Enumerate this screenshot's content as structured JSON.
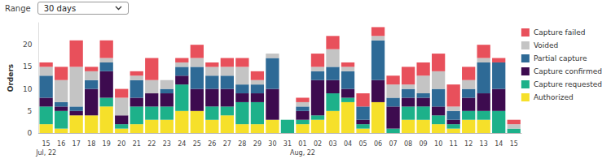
{
  "range_selector": {
    "label": "Range",
    "value": "30 days"
  },
  "chart_data": {
    "type": "bar",
    "stacked": true,
    "grid": false,
    "legend": "right",
    "y_label": "Orders",
    "ylim": [
      0,
      25
    ],
    "yticks": [
      0,
      5,
      10,
      15,
      20
    ],
    "categories": [
      "15\nJul, 22",
      "16",
      "17",
      "18",
      "19",
      "20",
      "21",
      "22",
      "23",
      "24",
      "25",
      "26",
      "27",
      "28",
      "29",
      "30",
      "31",
      "01\nAug, 22",
      "02",
      "03",
      "04",
      "05",
      "06",
      "07",
      "08",
      "09",
      "10",
      "11",
      "12",
      "13",
      "14",
      "15"
    ],
    "series": [
      {
        "name": "Authorized",
        "color": "#f6e02a",
        "values": [
          2,
          1,
          4,
          4,
          6,
          1,
          2,
          3,
          3,
          5,
          5,
          3,
          4,
          2,
          2,
          3,
          0,
          2,
          3,
          5,
          7,
          1,
          7,
          0,
          3,
          3,
          2,
          1,
          3,
          3,
          0,
          0
        ]
      },
      {
        "name": "Capture requested",
        "color": "#1db18a",
        "values": [
          4,
          4,
          0,
          0,
          2,
          1,
          4,
          3,
          3,
          6,
          0,
          3,
          2,
          5,
          5,
          0,
          3,
          1,
          1,
          4,
          1,
          1,
          0,
          1,
          3,
          3,
          2,
          1,
          2,
          2,
          5,
          1
        ]
      },
      {
        "name": "Capture confirmed",
        "color": "#3d0b4f",
        "values": [
          2,
          1,
          1,
          6,
          6,
          2,
          2,
          3,
          3,
          2,
          5,
          4,
          4,
          2,
          2,
          7,
          0,
          2,
          8,
          3,
          2,
          1,
          5,
          5,
          2,
          2,
          2,
          1,
          3,
          4,
          5,
          0
        ]
      },
      {
        "name": "Partial capture",
        "color": "#2e6a96",
        "values": [
          5,
          1,
          1,
          2,
          2,
          0,
          4,
          0,
          1,
          2,
          5,
          3,
          3,
          2,
          2,
          7,
          0,
          1,
          2,
          3,
          4,
          3,
          9,
          2,
          2,
          1,
          4,
          2,
          2,
          7,
          6,
          0
        ]
      },
      {
        "name": "Voided",
        "color": "#c4c4c4",
        "values": [
          2,
          5,
          9,
          2,
          1,
          4,
          1,
          3,
          2,
          1,
          2,
          2,
          2,
          4,
          1,
          1,
          0,
          1,
          1,
          4,
          1,
          0,
          1,
          3,
          1,
          4,
          4,
          1,
          2,
          1,
          0,
          1
        ]
      },
      {
        "name": "Capture failed",
        "color": "#e8505b",
        "values": [
          1,
          3,
          6,
          1,
          4,
          2,
          1,
          5,
          0,
          1,
          3,
          1,
          2,
          2,
          2,
          0,
          0,
          1,
          3,
          3,
          1,
          3,
          2,
          2,
          4,
          3,
          4,
          5,
          3,
          3,
          1,
          1
        ]
      }
    ]
  }
}
